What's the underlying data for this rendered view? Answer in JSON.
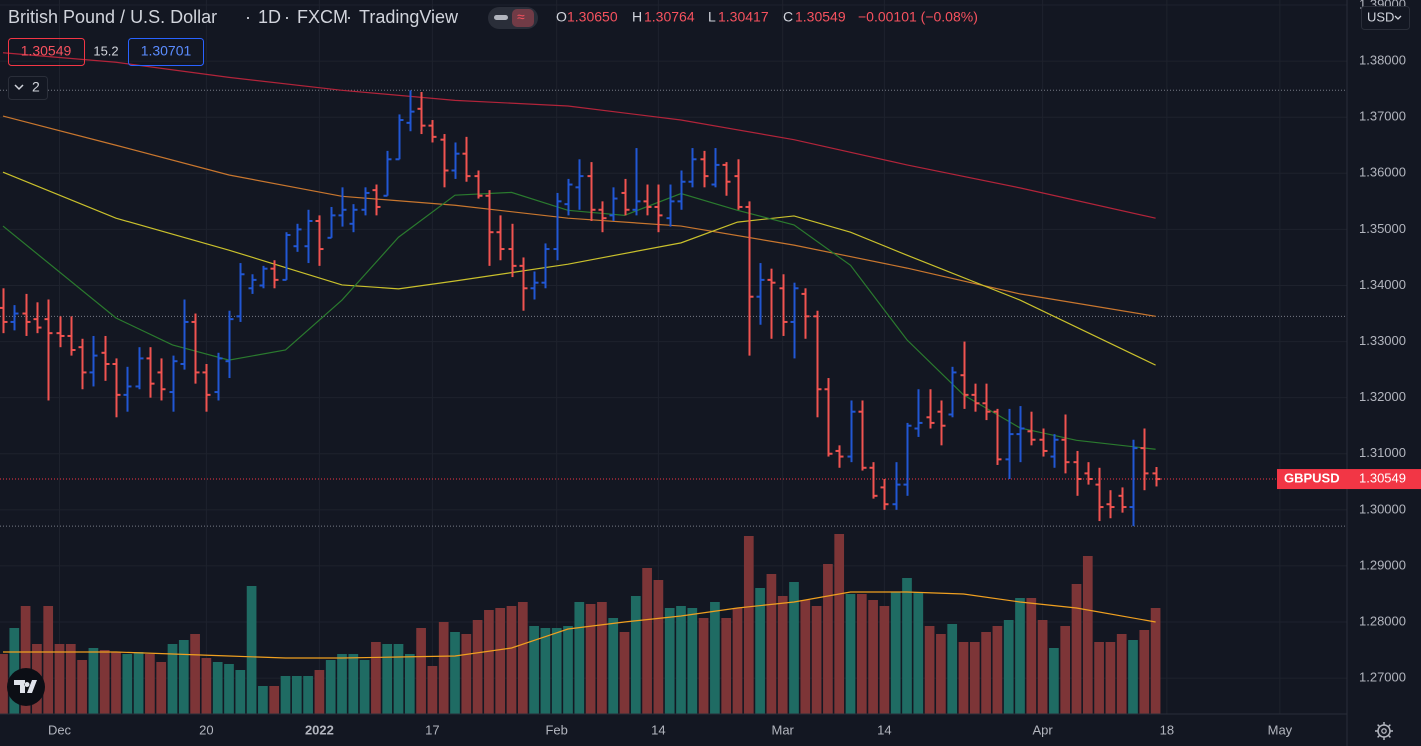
{
  "header": {
    "symbol": "British Pound / U.S. Dollar",
    "interval": "1D",
    "exchange": "FXCM",
    "source": "TradingView",
    "open_label": "O",
    "open": "1.30650",
    "high_label": "H",
    "high": "1.30764",
    "low_label": "L",
    "low": "1.30417",
    "close_label": "C",
    "close": "1.30549",
    "change": "−0.00101 (−0.08%)",
    "bid": "1.30549",
    "spread": "15.2",
    "ask": "1.30701",
    "indicators_count": "2",
    "currency": "USD"
  },
  "chart_data": {
    "type": "ohlc",
    "title": "British Pound / U.S. Dollar",
    "up_color": "#2157d4",
    "down_color": "#f05350",
    "open": [
      1.336,
      1.3335,
      1.335,
      1.334,
      1.334,
      1.3315,
      1.331,
      1.329,
      1.3245,
      1.328,
      1.326,
      1.3205,
      1.322,
      1.327,
      1.3245,
      1.321,
      1.326,
      1.3335,
      1.3245,
      1.321,
      1.3265,
      1.3345,
      1.3395,
      1.34,
      1.343,
      1.341,
      1.347,
      1.347,
      1.3515,
      1.3485,
      1.3525,
      1.351,
      1.3535,
      1.357,
      1.356,
      1.3625,
      1.369,
      1.3715,
      1.3685,
      1.366,
      1.3605,
      1.3635,
      1.3595,
      1.356,
      1.3495,
      1.3465,
      1.3435,
      1.3395,
      1.3405,
      1.3465,
      1.3545,
      1.3575,
      1.3595,
      1.3535,
      1.3525,
      1.3565,
      1.3535,
      1.355,
      1.354,
      1.352,
      1.355,
      1.3585,
      1.3625,
      1.358,
      1.3615,
      1.3595,
      1.354,
      1.338,
      1.341,
      1.3395,
      1.3335,
      1.3385,
      1.3345,
      1.3215,
      1.3105,
      1.3095,
      1.3175,
      1.3075,
      1.304,
      1.301,
      1.3045,
      1.3145,
      1.3165,
      1.3175,
      1.317,
      1.324,
      1.3205,
      1.319,
      1.3175,
      1.309,
      1.3135,
      1.314,
      1.3125,
      1.3095,
      1.3125,
      1.3085,
      1.3065,
      1.3045,
      1.301,
      1.3025,
      1.3005,
      1.311,
      1.3065
    ],
    "high": [
      1.3395,
      1.3365,
      1.3385,
      1.337,
      1.3375,
      1.3345,
      1.3345,
      1.3305,
      1.331,
      1.331,
      1.327,
      1.3255,
      1.329,
      1.329,
      1.327,
      1.3275,
      1.3375,
      1.335,
      1.326,
      1.328,
      1.3355,
      1.344,
      1.342,
      1.3435,
      1.3445,
      1.3495,
      1.351,
      1.3535,
      1.3525,
      1.354,
      1.3575,
      1.3545,
      1.3575,
      1.358,
      1.364,
      1.3705,
      1.3748,
      1.3745,
      1.3695,
      1.367,
      1.3655,
      1.3665,
      1.3605,
      1.357,
      1.3525,
      1.351,
      1.345,
      1.3425,
      1.3475,
      1.3565,
      1.359,
      1.3625,
      1.362,
      1.355,
      1.3575,
      1.359,
      1.3645,
      1.358,
      1.358,
      1.358,
      1.3605,
      1.3645,
      1.364,
      1.3645,
      1.362,
      1.3625,
      1.355,
      1.344,
      1.343,
      1.342,
      1.3405,
      1.3395,
      1.3355,
      1.3235,
      1.3115,
      1.3195,
      1.3195,
      1.3085,
      1.3055,
      1.3085,
      1.3155,
      1.3215,
      1.3215,
      1.3195,
      1.3255,
      1.33,
      1.3225,
      1.3225,
      1.318,
      1.318,
      1.3185,
      1.3175,
      1.3145,
      1.3135,
      1.317,
      1.3105,
      1.3085,
      1.3075,
      1.3035,
      1.304,
      1.3125,
      1.3145,
      1.30764
    ],
    "low": [
      1.3315,
      1.332,
      1.331,
      1.3315,
      1.3195,
      1.329,
      1.3275,
      1.3215,
      1.322,
      1.323,
      1.3165,
      1.3175,
      1.3215,
      1.32,
      1.3195,
      1.3175,
      1.325,
      1.3225,
      1.3175,
      1.3195,
      1.3235,
      1.3335,
      1.3385,
      1.3395,
      1.3395,
      1.341,
      1.346,
      1.344,
      1.3435,
      1.3485,
      1.3505,
      1.3495,
      1.3525,
      1.3525,
      1.356,
      1.3625,
      1.3675,
      1.367,
      1.3655,
      1.3575,
      1.359,
      1.3585,
      1.3555,
      1.3435,
      1.3445,
      1.3415,
      1.3355,
      1.3375,
      1.3395,
      1.3445,
      1.3525,
      1.3535,
      1.3515,
      1.3495,
      1.3515,
      1.3525,
      1.3525,
      1.3525,
      1.3495,
      1.3505,
      1.3535,
      1.3575,
      1.3575,
      1.3575,
      1.356,
      1.3535,
      1.3275,
      1.333,
      1.3305,
      1.331,
      1.327,
      1.3305,
      1.3165,
      1.3095,
      1.3075,
      1.3085,
      1.307,
      1.302,
      1.3,
      1.3,
      1.3025,
      1.313,
      1.3145,
      1.3115,
      1.3165,
      1.318,
      1.3175,
      1.316,
      1.308,
      1.3055,
      1.3085,
      1.3115,
      1.3095,
      1.3075,
      1.3065,
      1.3025,
      1.3045,
      1.298,
      1.2985,
      1.2995,
      1.2971,
      1.3035,
      1.30417
    ],
    "close": [
      1.3335,
      1.335,
      1.3335,
      1.3325,
      1.3315,
      1.331,
      1.3285,
      1.3245,
      1.3275,
      1.326,
      1.3205,
      1.322,
      1.327,
      1.3225,
      1.3215,
      1.3265,
      1.3335,
      1.3245,
      1.3205,
      1.327,
      1.334,
      1.342,
      1.341,
      1.343,
      1.341,
      1.349,
      1.35,
      1.3515,
      1.3465,
      1.3525,
      1.3535,
      1.3535,
      1.3565,
      1.354,
      1.3625,
      1.3695,
      1.371,
      1.3685,
      1.3665,
      1.3605,
      1.3635,
      1.3595,
      1.356,
      1.3495,
      1.3465,
      1.3435,
      1.3395,
      1.3405,
      1.3465,
      1.355,
      1.358,
      1.3595,
      1.3535,
      1.352,
      1.3555,
      1.3535,
      1.355,
      1.354,
      1.3525,
      1.355,
      1.3585,
      1.3625,
      1.3595,
      1.3615,
      1.3585,
      1.354,
      1.338,
      1.341,
      1.3405,
      1.3335,
      1.3395,
      1.3345,
      1.3215,
      1.31,
      1.3095,
      1.3175,
      1.3075,
      1.3025,
      1.301,
      1.3045,
      1.315,
      1.3155,
      1.3155,
      1.315,
      1.3245,
      1.3205,
      1.319,
      1.3175,
      1.309,
      1.3135,
      1.3145,
      1.3125,
      1.3105,
      1.3125,
      1.3085,
      1.3055,
      1.3055,
      1.3005,
      1.3005,
      1.3005,
      1.311,
      1.3065,
      1.30549
    ],
    "ylim": [
      1.2636,
      1.3909
    ],
    "yticks": [
      {
        "value": 1.27,
        "label": "1.27000"
      },
      {
        "value": 1.28,
        "label": "1.28000"
      },
      {
        "value": 1.29,
        "label": "1.29000"
      },
      {
        "value": 1.3,
        "label": "1.30000"
      },
      {
        "value": 1.31,
        "label": "1.31000"
      },
      {
        "value": 1.32,
        "label": "1.32000"
      },
      {
        "value": 1.33,
        "label": "1.33000"
      },
      {
        "value": 1.34,
        "label": "1.34000"
      },
      {
        "value": 1.35,
        "label": "1.35000"
      },
      {
        "value": 1.36,
        "label": "1.36000"
      },
      {
        "value": 1.37,
        "label": "1.37000"
      },
      {
        "value": 1.38,
        "label": "1.38000"
      },
      {
        "value": 1.39,
        "label": "1.39000"
      }
    ],
    "xticks": [
      {
        "value": 5,
        "label": "Dec"
      },
      {
        "value": 18,
        "label": "20"
      },
      {
        "value": 28,
        "label": "2022"
      },
      {
        "value": 38,
        "label": "17"
      },
      {
        "value": 49,
        "label": "Feb"
      },
      {
        "value": 58,
        "label": "14"
      },
      {
        "value": 69,
        "label": "Mar"
      },
      {
        "value": 78,
        "label": "14"
      },
      {
        "value": 92,
        "label": "Apr"
      },
      {
        "value": 103,
        "label": "18"
      },
      {
        "value": 113,
        "label": "May"
      }
    ],
    "grid": true,
    "moving_averages": [
      {
        "color": "#b2243a",
        "x": [
          0,
          10,
          20,
          30,
          40,
          50,
          60,
          70,
          80,
          90,
          102
        ],
        "values": [
          1.3815,
          1.3798,
          1.3771,
          1.3748,
          1.373,
          1.372,
          1.3695,
          1.366,
          1.3615,
          1.3574,
          1.352
        ]
      },
      {
        "color": "#c8762e",
        "x": [
          0,
          10,
          20,
          30,
          40,
          50,
          60,
          70,
          80,
          90,
          102
        ],
        "values": [
          1.3702,
          1.365,
          1.3597,
          1.3559,
          1.3543,
          1.352,
          1.3506,
          1.3472,
          1.3431,
          1.3385,
          1.3345
        ]
      },
      {
        "color": "#c9c02c",
        "x": [
          0,
          10,
          20,
          30,
          35,
          40,
          50,
          60,
          65,
          70,
          75,
          80,
          90,
          102
        ],
        "values": [
          1.3602,
          1.352,
          1.3463,
          1.3401,
          1.3394,
          1.3408,
          1.3438,
          1.3476,
          1.3513,
          1.3524,
          1.3495,
          1.3454,
          1.3374,
          1.3258
        ]
      },
      {
        "color": "#2a7a2e",
        "x": [
          0,
          10,
          15,
          20,
          25,
          30,
          35,
          40,
          45,
          50,
          55,
          60,
          65,
          70,
          75,
          80,
          85,
          90,
          95,
          102
        ],
        "values": [
          1.3506,
          1.3342,
          1.3294,
          1.3267,
          1.3285,
          1.3374,
          1.3486,
          1.3561,
          1.3566,
          1.3534,
          1.3525,
          1.3564,
          1.3534,
          1.3508,
          1.3436,
          1.3303,
          1.3205,
          1.3146,
          1.3124,
          1.3108
        ]
      }
    ],
    "horizontal_lines": [
      1.3748,
      1.3345,
      1.2971
    ],
    "last_price": {
      "name": "GBPUSD",
      "value": 1.30549,
      "label": "1.30549",
      "color": "#f23645"
    },
    "volume": {
      "ylim": [
        0,
        200
      ],
      "up_color": "#1f6b63",
      "down_color": "#7d3537",
      "values": [
        60,
        86,
        108,
        70,
        108,
        70,
        70,
        54,
        66,
        64,
        62,
        60,
        62,
        60,
        52,
        70,
        74,
        80,
        56,
        52,
        50,
        44,
        128,
        28,
        28,
        38,
        38,
        38,
        44,
        54,
        60,
        60,
        54,
        72,
        70,
        70,
        60,
        86,
        48,
        92,
        82,
        80,
        94,
        104,
        106,
        108,
        112,
        88,
        86,
        86,
        88,
        112,
        110,
        112,
        96,
        82,
        118,
        146,
        134,
        106,
        108,
        106,
        96,
        112,
        96,
        106,
        178,
        126,
        140,
        118,
        132,
        114,
        108,
        150,
        180,
        120,
        120,
        114,
        108,
        122,
        136,
        122,
        88,
        80,
        90,
        72,
        72,
        82,
        88,
        94,
        116,
        116,
        94,
        66,
        88,
        130,
        158,
        72,
        72,
        80,
        74,
        84,
        106
      ],
      "ma": {
        "color": "#f0a020",
        "x": [
          0,
          10,
          20,
          25,
          30,
          35,
          40,
          45,
          50,
          55,
          60,
          65,
          70,
          75,
          80,
          85,
          90,
          95,
          102
        ],
        "values": [
          62,
          62,
          58,
          56,
          56,
          57,
          58,
          66,
          85,
          92,
          98,
          106,
          112,
          122,
          122,
          120,
          112,
          106,
          92
        ]
      }
    }
  }
}
